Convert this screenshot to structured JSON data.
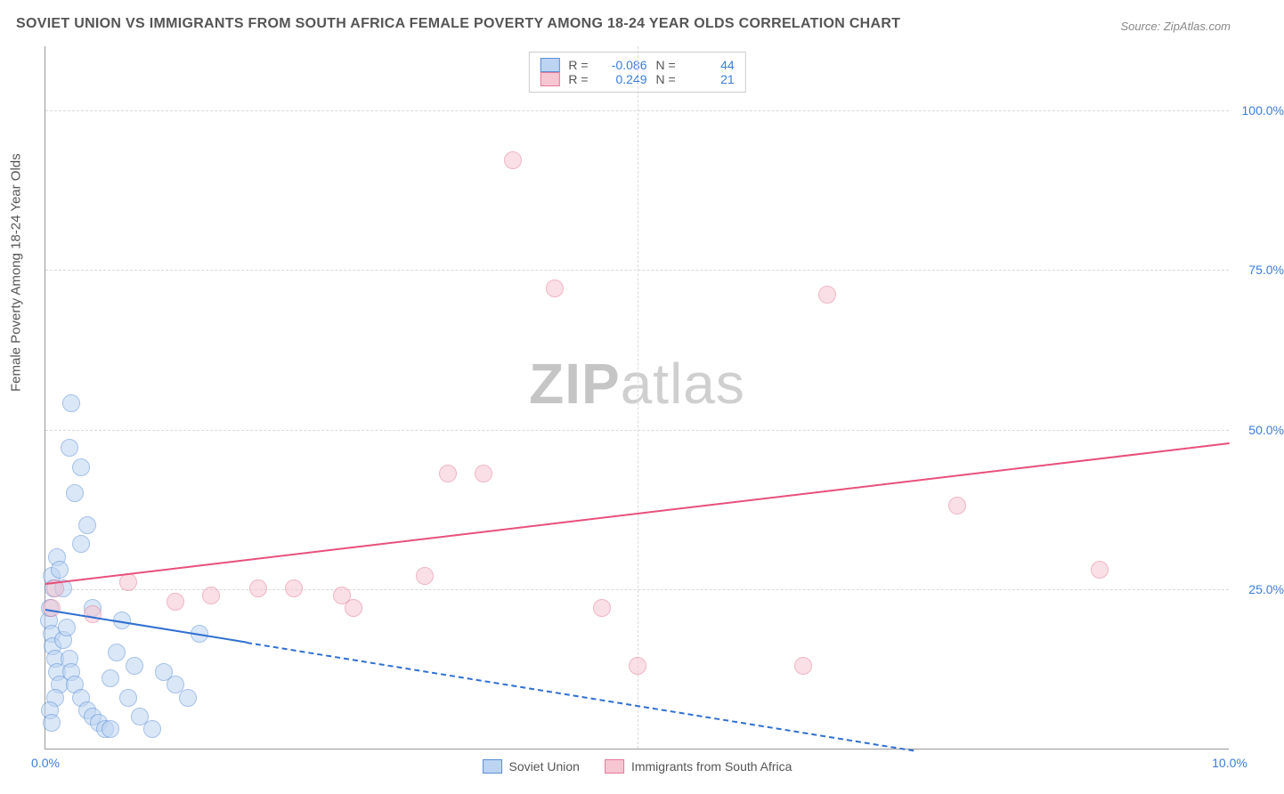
{
  "title": "SOVIET UNION VS IMMIGRANTS FROM SOUTH AFRICA FEMALE POVERTY AMONG 18-24 YEAR OLDS CORRELATION CHART",
  "source": "Source: ZipAtlas.com",
  "ylabel": "Female Poverty Among 18-24 Year Olds",
  "watermark_a": "ZIP",
  "watermark_b": "atlas",
  "chart": {
    "type": "scatter",
    "background_color": "#ffffff",
    "grid_color": "#d9d9d9",
    "axis_color": "#999999",
    "tick_label_color": "#3b7dd8",
    "xlim": [
      0,
      10
    ],
    "ylim": [
      0,
      110
    ],
    "yticks": [
      {
        "v": 25,
        "label": "25.0%"
      },
      {
        "v": 50,
        "label": "50.0%"
      },
      {
        "v": 75,
        "label": "75.0%"
      },
      {
        "v": 100,
        "label": "100.0%"
      }
    ],
    "xticks": [
      {
        "v": 0,
        "label": "0.0%"
      },
      {
        "v": 10,
        "label": "10.0%"
      }
    ],
    "x_gridlines_at": [
      5
    ],
    "marker_radius": 10
  },
  "series": [
    {
      "name": "Soviet Union",
      "abbrev": "soviet",
      "fill": "#bcd4f2",
      "stroke": "#5a8fd6",
      "fill_opacity": 0.55,
      "R": "-0.086",
      "N": "44",
      "trend": {
        "y_at_x0": 22,
        "y_at_xmax": -8,
        "solid_until_x": 1.7,
        "color": "#2f6fd0",
        "width": 2
      },
      "points": [
        {
          "x": 0.03,
          "y": 20
        },
        {
          "x": 0.04,
          "y": 22
        },
        {
          "x": 0.05,
          "y": 18
        },
        {
          "x": 0.06,
          "y": 16
        },
        {
          "x": 0.08,
          "y": 14
        },
        {
          "x": 0.1,
          "y": 12
        },
        {
          "x": 0.12,
          "y": 10
        },
        {
          "x": 0.05,
          "y": 27
        },
        {
          "x": 0.07,
          "y": 25
        },
        {
          "x": 0.15,
          "y": 17
        },
        {
          "x": 0.18,
          "y": 19
        },
        {
          "x": 0.2,
          "y": 14
        },
        {
          "x": 0.22,
          "y": 12
        },
        {
          "x": 0.25,
          "y": 10
        },
        {
          "x": 0.3,
          "y": 8
        },
        {
          "x": 0.35,
          "y": 6
        },
        {
          "x": 0.4,
          "y": 5
        },
        {
          "x": 0.45,
          "y": 4
        },
        {
          "x": 0.5,
          "y": 3
        },
        {
          "x": 0.55,
          "y": 3
        },
        {
          "x": 0.1,
          "y": 30
        },
        {
          "x": 0.12,
          "y": 28
        },
        {
          "x": 0.3,
          "y": 32
        },
        {
          "x": 0.35,
          "y": 35
        },
        {
          "x": 0.25,
          "y": 40
        },
        {
          "x": 0.3,
          "y": 44
        },
        {
          "x": 0.2,
          "y": 47
        },
        {
          "x": 0.22,
          "y": 54
        },
        {
          "x": 0.7,
          "y": 8
        },
        {
          "x": 0.8,
          "y": 5
        },
        {
          "x": 0.9,
          "y": 3
        },
        {
          "x": 1.0,
          "y": 12
        },
        {
          "x": 1.1,
          "y": 10
        },
        {
          "x": 1.2,
          "y": 8
        },
        {
          "x": 1.3,
          "y": 18
        },
        {
          "x": 0.6,
          "y": 15
        },
        {
          "x": 0.65,
          "y": 20
        },
        {
          "x": 0.08,
          "y": 8
        },
        {
          "x": 0.04,
          "y": 6
        },
        {
          "x": 0.05,
          "y": 4
        },
        {
          "x": 0.55,
          "y": 11
        },
        {
          "x": 0.75,
          "y": 13
        },
        {
          "x": 0.15,
          "y": 25
        },
        {
          "x": 0.4,
          "y": 22
        }
      ]
    },
    {
      "name": "Immigrants from South Africa",
      "abbrev": "south-africa",
      "fill": "#f6c6d2",
      "stroke": "#e47a99",
      "fill_opacity": 0.55,
      "R": "0.249",
      "N": "21",
      "trend": {
        "y_at_x0": 26,
        "y_at_xmax": 48,
        "solid_until_x": 10,
        "color": "#e8507a",
        "width": 2
      },
      "points": [
        {
          "x": 0.05,
          "y": 22
        },
        {
          "x": 0.08,
          "y": 25
        },
        {
          "x": 0.4,
          "y": 21
        },
        {
          "x": 0.7,
          "y": 26
        },
        {
          "x": 1.1,
          "y": 23
        },
        {
          "x": 1.4,
          "y": 24
        },
        {
          "x": 1.8,
          "y": 25
        },
        {
          "x": 2.1,
          "y": 25
        },
        {
          "x": 2.5,
          "y": 24
        },
        {
          "x": 2.6,
          "y": 22
        },
        {
          "x": 3.2,
          "y": 27
        },
        {
          "x": 3.4,
          "y": 43
        },
        {
          "x": 3.7,
          "y": 43
        },
        {
          "x": 3.95,
          "y": 92
        },
        {
          "x": 4.3,
          "y": 72
        },
        {
          "x": 4.7,
          "y": 22
        },
        {
          "x": 5.0,
          "y": 13
        },
        {
          "x": 6.4,
          "y": 13
        },
        {
          "x": 6.6,
          "y": 71
        },
        {
          "x": 7.7,
          "y": 38
        },
        {
          "x": 8.9,
          "y": 28
        }
      ]
    }
  ],
  "legend_top": {
    "R_label": "R =",
    "N_label": "N ="
  },
  "legend_bottom": [
    {
      "key": "soviet",
      "label": "Soviet Union"
    },
    {
      "key": "south-africa",
      "label": "Immigrants from South Africa"
    }
  ]
}
